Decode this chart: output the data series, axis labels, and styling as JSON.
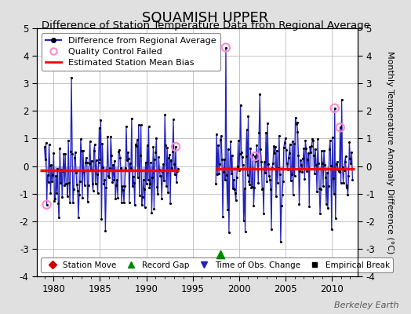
{
  "title": "SQUAMISH UPPER",
  "subtitle": "Difference of Station Temperature Data from Regional Average",
  "ylabel": "Monthly Temperature Anomaly Difference (°C)",
  "xlabel_years": [
    1980,
    1985,
    1990,
    1995,
    2000,
    2005,
    2010
  ],
  "xlim": [
    1978.2,
    2012.8
  ],
  "ylim": [
    -4,
    5
  ],
  "yticks": [
    -4,
    -3,
    -2,
    -1,
    0,
    1,
    2,
    3,
    4,
    5
  ],
  "bias1_y": -0.15,
  "bias1_x0": 1978.5,
  "bias1_x1": 1993.5,
  "bias2_y": -0.1,
  "bias2_x0": 1997.5,
  "bias2_x1": 2012.5,
  "period1_start": 1979.0,
  "period1_end": 1993.5,
  "period2_start": 1997.5,
  "period2_end": 2012.3,
  "gap_marker_x": 1998.0,
  "gap_marker_y": -3.2,
  "qc_x": [
    1979.25,
    1993.17,
    1998.58,
    2001.75,
    2010.33,
    2010.92
  ],
  "qc_y": [
    -1.4,
    0.7,
    4.3,
    0.35,
    2.1,
    1.4
  ],
  "background_color": "#e0e0e0",
  "plot_bg_color": "#ffffff",
  "line_color": "#2222bb",
  "fill_color": "#aaaaee",
  "bias_color": "#ff0000",
  "grid_color": "#bbbbbb",
  "title_fontsize": 13,
  "subtitle_fontsize": 9.5,
  "axis_label_fontsize": 8,
  "tick_fontsize": 8.5,
  "legend_fontsize": 8,
  "watermark": "Berkeley Earth",
  "seed1": 42,
  "seed2": 99
}
